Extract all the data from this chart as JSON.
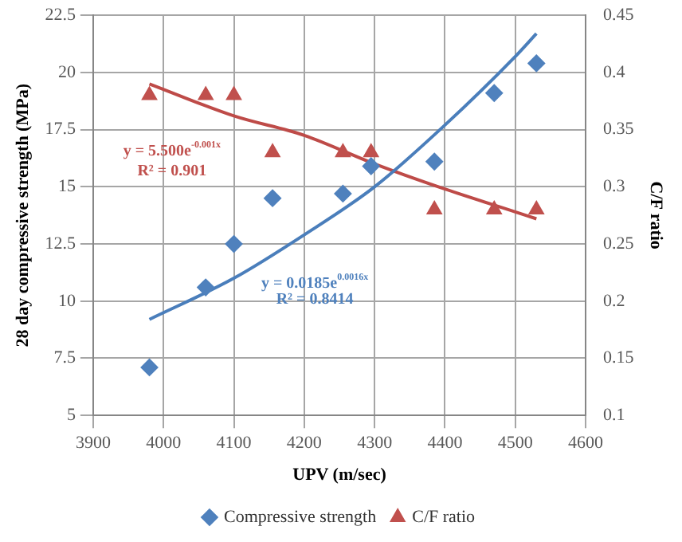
{
  "chart_data": {
    "type": "scatter",
    "xlabel": "UPV (m/sec)",
    "ylabel": "28 day compressive strength (MPa)",
    "y2label": "C/F ratio",
    "xlim": [
      3900,
      4600
    ],
    "xticks": [
      3900,
      4000,
      4100,
      4200,
      4300,
      4400,
      4500,
      4600
    ],
    "ylim": [
      5,
      22.5
    ],
    "yticks": [
      5,
      7.5,
      10,
      12.5,
      15,
      17.5,
      20,
      22.5
    ],
    "y2lim": [
      0.1,
      0.45
    ],
    "y2ticks": [
      0.1,
      0.15,
      0.2,
      0.25,
      0.3,
      0.35,
      0.4,
      0.45
    ],
    "grid": true,
    "legend": "bottom",
    "series": [
      {
        "name": "Compressive strength",
        "color": "#4f81bd",
        "marker": "diamond",
        "x": [
          3980,
          4060,
          4100,
          4155,
          4255,
          4295,
          4385,
          4470,
          4530
        ],
        "values": [
          7.1,
          10.6,
          12.5,
          14.5,
          14.7,
          15.9,
          16.1,
          19.1,
          20.4
        ]
      },
      {
        "name": "C/F ratio",
        "color": "#c0504d",
        "marker": "triangle",
        "axis": "y2",
        "x": [
          3980,
          4060,
          4100,
          4155,
          4255,
          4295,
          4385,
          4470,
          4530
        ],
        "values": [
          0.38,
          0.38,
          0.38,
          0.33,
          0.33,
          0.33,
          0.28,
          0.28,
          0.28
        ]
      },
      {
        "type": "line",
        "color": "#4a7ebb",
        "x": [
          3980,
          4100,
          4200,
          4300,
          4400,
          4500,
          4530
        ],
        "values": [
          9.2,
          11.0,
          12.9,
          15.0,
          17.7,
          20.7,
          21.7
        ]
      },
      {
        "type": "line",
        "color": "#be4b48",
        "axis": "y2",
        "x": [
          3980,
          4100,
          4200,
          4300,
          4400,
          4500,
          4530
        ],
        "values": [
          0.39,
          0.362,
          0.345,
          0.32,
          0.298,
          0.278,
          0.272
        ]
      }
    ],
    "annotations": [
      "y = 5.500e$^{-0.001x}$",
      "R² = 0.901",
      "y = 0.0185e$^{0.0016x}$",
      "R² = 0.8414"
    ]
  }
}
